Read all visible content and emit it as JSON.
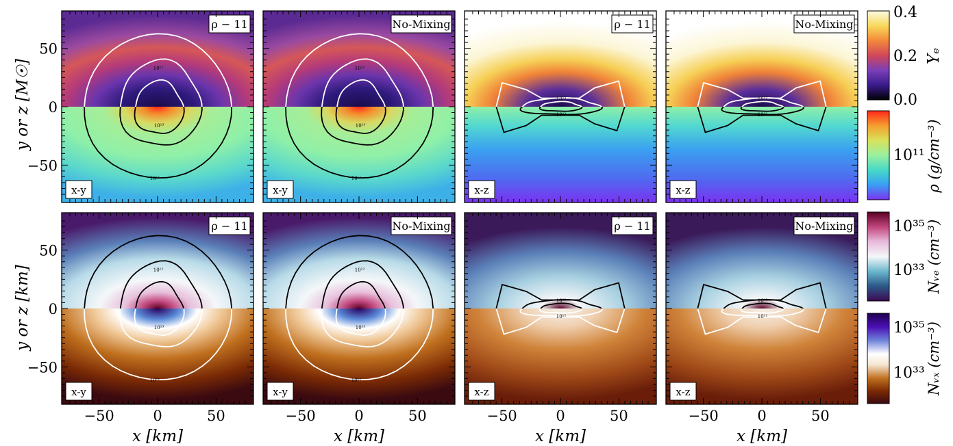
{
  "chart_data": {
    "type": "heatmap",
    "xlabel": "x [km]",
    "ylabel_top": "y or z [M☉]",
    "ylabel_bottom": "y or z [km]",
    "xlim": [
      -82,
      82
    ],
    "ylim": [
      -82,
      82
    ],
    "xticks": [
      -50,
      0,
      50
    ],
    "yticks": [
      50,
      0,
      -50
    ],
    "panels": [
      {
        "row": 1,
        "col": 1,
        "model": "ρ − 11",
        "plane": "x-y"
      },
      {
        "row": 1,
        "col": 2,
        "model": "No-Mixing",
        "plane": "x-y"
      },
      {
        "row": 1,
        "col": 3,
        "model": "ρ − 11",
        "plane": "x-z"
      },
      {
        "row": 1,
        "col": 4,
        "model": "No-Mixing",
        "plane": "x-z"
      },
      {
        "row": 2,
        "col": 1,
        "model": "ρ − 11",
        "plane": "x-y"
      },
      {
        "row": 2,
        "col": 2,
        "model": "No-Mixing",
        "plane": "x-y"
      },
      {
        "row": 2,
        "col": 3,
        "model": "ρ − 11",
        "plane": "x-z"
      },
      {
        "row": 2,
        "col": 4,
        "model": "No-Mixing",
        "plane": "x-z"
      }
    ],
    "contour_labels": [
      "10¹¹",
      "10¹²",
      "10¹³"
    ],
    "colorbars": [
      {
        "label": "Yₑ",
        "ticks": [
          "0.0",
          "0.2",
          "0.4"
        ],
        "range": [
          0.0,
          0.4
        ],
        "colors": [
          "#000004",
          "#3b1c8c",
          "#7a3fb8",
          "#d2475a",
          "#f38a3a",
          "#f7d85a",
          "#fcfbe3"
        ]
      },
      {
        "label": "ρ (g/cm⁻³)",
        "ticks": [
          "10¹¹"
        ],
        "colors": [
          "#7a32f0",
          "#3aa0f5",
          "#45d8c8",
          "#9af0a0",
          "#d9e15a",
          "#f5a030",
          "#ff2818"
        ]
      },
      {
        "label": "Nᵥₑ (cm⁻³)",
        "ticks": [
          "10³⁵",
          "10³³"
        ],
        "colors": [
          "#3b0a52",
          "#2d5a8a",
          "#6ab5cc",
          "#f4f7f9",
          "#e7b9da",
          "#c2487e",
          "#5a0024"
        ]
      },
      {
        "label": "Nᵥₓ (cm⁻³)",
        "ticks": [
          "10³⁵",
          "10³³"
        ],
        "colors": [
          "#3b0a10",
          "#7a2a05",
          "#c0701e",
          "#f4e6d2",
          "#ffffff",
          "#6f82da",
          "#4a0fb4",
          "#1f004e"
        ]
      }
    ]
  }
}
